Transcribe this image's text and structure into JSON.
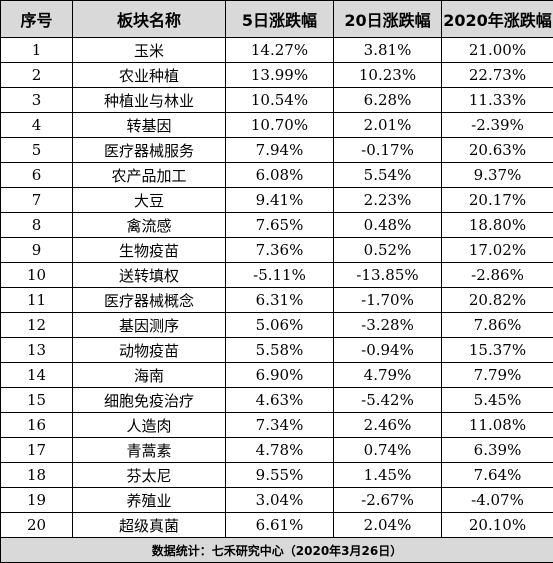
{
  "headers": [
    "序号",
    "板块名称",
    "5日涨跌幅",
    "20日涨跌幅",
    "2020年涨跌幅"
  ],
  "rows": [
    [
      "1",
      "玉米",
      "14.27%",
      "3.81%",
      "21.00%"
    ],
    [
      "2",
      "农业种植",
      "13.99%",
      "10.23%",
      "22.73%"
    ],
    [
      "3",
      "种植业与林业",
      "10.54%",
      "6.28%",
      "11.33%"
    ],
    [
      "4",
      "转基因",
      "10.70%",
      "2.01%",
      "-2.39%"
    ],
    [
      "5",
      "医疗器械服务",
      "7.94%",
      "-0.17%",
      "20.63%"
    ],
    [
      "6",
      "农产品加工",
      "6.08%",
      "5.54%",
      "9.37%"
    ],
    [
      "7",
      "大豆",
      "9.41%",
      "2.23%",
      "20.17%"
    ],
    [
      "8",
      "禽流感",
      "7.65%",
      "0.48%",
      "18.80%"
    ],
    [
      "9",
      "生物疫苗",
      "7.36%",
      "0.52%",
      "17.02%"
    ],
    [
      "10",
      "送转填权",
      "-5.11%",
      "-13.85%",
      "-2.86%"
    ],
    [
      "11",
      "医疗器械概念",
      "6.31%",
      "-1.70%",
      "20.82%"
    ],
    [
      "12",
      "基因测序",
      "5.06%",
      "-3.28%",
      "7.86%"
    ],
    [
      "13",
      "动物疫苗",
      "5.58%",
      "-0.94%",
      "15.37%"
    ],
    [
      "14",
      "海南",
      "6.90%",
      "4.79%",
      "7.79%"
    ],
    [
      "15",
      "细胞免疫治疗",
      "4.63%",
      "-5.42%",
      "5.45%"
    ],
    [
      "16",
      "人造肉",
      "7.34%",
      "2.46%",
      "11.08%"
    ],
    [
      "17",
      "青蒿素",
      "4.78%",
      "0.74%",
      "6.39%"
    ],
    [
      "18",
      "芬太尼",
      "9.55%",
      "1.45%",
      "7.64%"
    ],
    [
      "19",
      "养殖业",
      "3.04%",
      "-2.67%",
      "-4.07%"
    ],
    [
      "20",
      "超级真菌",
      "6.61%",
      "2.04%",
      "20.10%"
    ]
  ],
  "footer": "数据统计：七禾研究中心（2020年3月26日）"
}
